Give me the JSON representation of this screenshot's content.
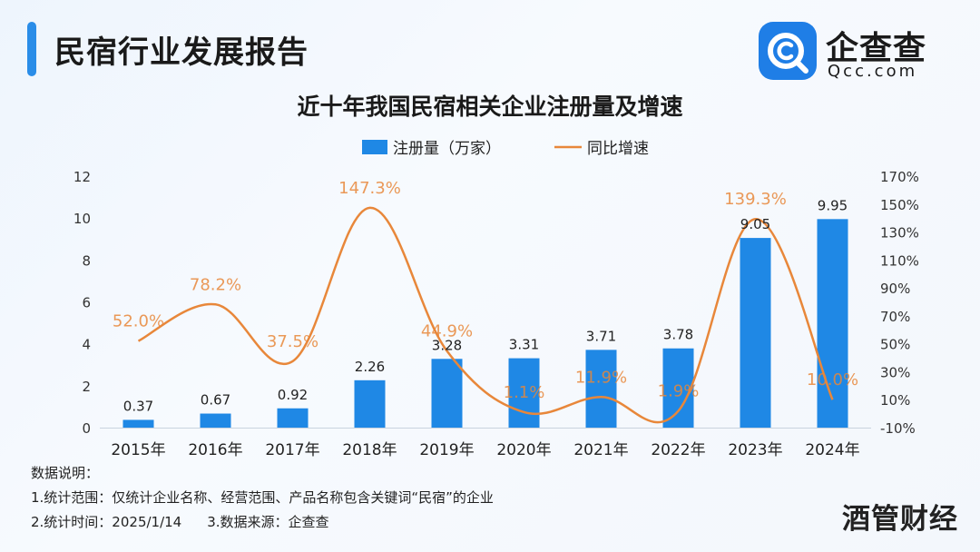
{
  "header": {
    "title": "民宿行业发展报告"
  },
  "logo": {
    "name": "企查查",
    "domain": "Qcc.com"
  },
  "chart_data": {
    "type": "bar+line",
    "title": "近十年我国民宿相关企业注册量及增速",
    "categories": [
      "2015年",
      "2016年",
      "2017年",
      "2018年",
      "2019年",
      "2020年",
      "2021年",
      "2022年",
      "2023年",
      "2024年"
    ],
    "series": [
      {
        "name": "注册量（万家）",
        "type": "bar",
        "axis": "left",
        "color": "#1f88e5",
        "values": [
          0.37,
          0.67,
          0.92,
          2.26,
          3.28,
          3.31,
          3.71,
          3.78,
          9.05,
          9.95
        ],
        "labels": [
          "0.37",
          "0.67",
          "0.92",
          "2.26",
          "3.28",
          "3.31",
          "3.71",
          "3.78",
          "9.05",
          "9.95"
        ]
      },
      {
        "name": "同比增速",
        "type": "line",
        "axis": "right",
        "color": "#e8873a",
        "values": [
          52.0,
          78.2,
          37.5,
          147.3,
          44.9,
          1.1,
          11.9,
          1.9,
          139.3,
          10.0
        ],
        "labels": [
          "52.0%",
          "78.2%",
          "37.5%",
          "147.3%",
          "44.9%",
          "1.1%",
          "11.9%",
          "1.9%",
          "139.3%",
          "10.0%"
        ]
      }
    ],
    "y_left": {
      "ticks": [
        "0",
        "2",
        "4",
        "6",
        "8",
        "10",
        "12"
      ],
      "lim": [
        0,
        12
      ]
    },
    "y_right": {
      "ticks": [
        "-10%",
        "10%",
        "30%",
        "50%",
        "70%",
        "90%",
        "110%",
        "130%",
        "150%",
        "170%"
      ],
      "lim": [
        -10,
        170
      ]
    },
    "legend": "top-center",
    "grid": false
  },
  "notes": {
    "heading": "数据说明：",
    "line1": "1.统计范围：仅统计企业名称、经营范围、产品名称包含关键词“民宿”的企业",
    "line2a": "2.统计时间：2025/1/14",
    "line2b": "3.数据来源：企查查"
  },
  "watermark": "酒管财经"
}
